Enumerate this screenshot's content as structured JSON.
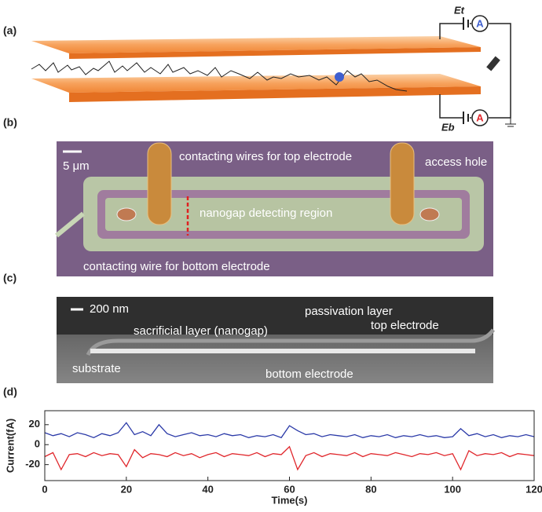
{
  "panel_labels": [
    "(a)",
    "(b)",
    "(c)",
    "(d)"
  ],
  "figure_a": {
    "top_source": "Et",
    "bottom_source": "Eb",
    "meter": "A"
  },
  "figure_b": {
    "scale_bar": "5 μm",
    "labels": [
      "contacting wires for top electrode",
      "access hole",
      "nanogap detecting region",
      "contacting wire for bottom electrode"
    ]
  },
  "figure_c": {
    "scale_bar": "200 nm",
    "labels": [
      "passivation layer",
      "sacrificial layer (nanogap)",
      "top electrode",
      "substrate",
      "bottom electrode"
    ]
  },
  "chart_data": {
    "type": "line",
    "xlabel": "Time(s)",
    "ylabel": "Current(fA)",
    "xlim": [
      0,
      120
    ],
    "ylim": [
      -36,
      34
    ],
    "xticks": [
      0,
      20,
      40,
      60,
      80,
      100,
      120
    ],
    "yticks": [
      -20,
      0,
      20
    ],
    "x": [
      0,
      2,
      4,
      6,
      8,
      10,
      12,
      14,
      16,
      18,
      20,
      22,
      24,
      26,
      28,
      30,
      32,
      34,
      36,
      38,
      40,
      42,
      44,
      46,
      48,
      50,
      52,
      54,
      56,
      58,
      60,
      62,
      64,
      66,
      68,
      70,
      72,
      74,
      76,
      78,
      80,
      82,
      84,
      86,
      88,
      90,
      92,
      94,
      96,
      98,
      100,
      102,
      104,
      106,
      108,
      110,
      112,
      114,
      116,
      118,
      120
    ],
    "series": [
      {
        "color": "#2b3aa8",
        "values": [
          12,
          9,
          11,
          8,
          12,
          10,
          7,
          11,
          9,
          12,
          22,
          10,
          13,
          9,
          20,
          11,
          8,
          10,
          12,
          9,
          10,
          8,
          11,
          9,
          10,
          7,
          9,
          8,
          10,
          7,
          19,
          14,
          10,
          11,
          8,
          10,
          9,
          8,
          10,
          7,
          9,
          8,
          10,
          7,
          9,
          8,
          10,
          8,
          9,
          7,
          8,
          16,
          9,
          11,
          8,
          10,
          7,
          9,
          8,
          10,
          8
        ]
      },
      {
        "color": "#e0262b",
        "values": [
          -12,
          -8,
          -25,
          -10,
          -9,
          -12,
          -8,
          -11,
          -9,
          -10,
          -22,
          -5,
          -13,
          -9,
          -10,
          -12,
          -8,
          -11,
          -9,
          -13,
          -10,
          -8,
          -12,
          -9,
          -10,
          -11,
          -8,
          -12,
          -9,
          -10,
          -2,
          -25,
          -11,
          -8,
          -12,
          -9,
          -10,
          -11,
          -8,
          -12,
          -9,
          -10,
          -11,
          -8,
          -10,
          -12,
          -9,
          -10,
          -8,
          -11,
          -9,
          -25,
          -6,
          -11,
          -9,
          -10,
          -8,
          -12,
          -9,
          -10,
          -11
        ]
      }
    ]
  }
}
